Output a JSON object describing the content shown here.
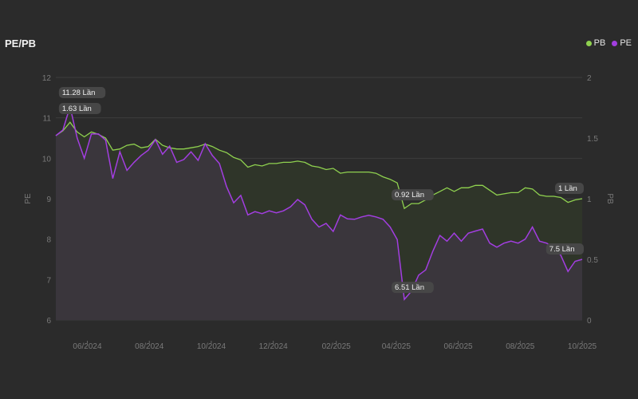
{
  "chart_data": {
    "type": "line",
    "title": "PE/PB",
    "left_axis": {
      "label": "PE",
      "ylim": [
        6,
        12
      ],
      "ticks": [
        "6",
        "7",
        "8",
        "9",
        "10",
        "11",
        "12"
      ]
    },
    "right_axis": {
      "label": "PB",
      "ylim": [
        0,
        2
      ],
      "ticks": [
        "0",
        "0.5",
        "1",
        "1.5",
        "2"
      ]
    },
    "x_ticks": [
      {
        "date": "2024-06-01",
        "label": "06/2024"
      },
      {
        "date": "2024-08-01",
        "label": "08/2024"
      },
      {
        "date": "2024-10-01",
        "label": "10/2024"
      },
      {
        "date": "2024-12-01",
        "label": "12/2024"
      },
      {
        "date": "2025-02-01",
        "label": "02/2025"
      },
      {
        "date": "2025-04-01",
        "label": "04/2025"
      },
      {
        "date": "2025-06-01",
        "label": "06/2025"
      },
      {
        "date": "2025-08-01",
        "label": "08/2025"
      },
      {
        "date": "2025-10-01",
        "label": "10/2025"
      }
    ],
    "grid": true,
    "legend_position": "top-right",
    "x": [
      "2024-05-01",
      "2024-05-08",
      "2024-05-15",
      "2024-05-22",
      "2024-05-29",
      "2024-06-05",
      "2024-06-12",
      "2024-06-19",
      "2024-06-26",
      "2024-07-03",
      "2024-07-10",
      "2024-07-17",
      "2024-07-24",
      "2024-07-31",
      "2024-08-07",
      "2024-08-14",
      "2024-08-21",
      "2024-08-28",
      "2024-09-04",
      "2024-09-11",
      "2024-09-18",
      "2024-09-25",
      "2024-10-02",
      "2024-10-09",
      "2024-10-16",
      "2024-10-23",
      "2024-10-30",
      "2024-11-06",
      "2024-11-13",
      "2024-11-20",
      "2024-11-27",
      "2024-12-04",
      "2024-12-11",
      "2024-12-18",
      "2024-12-25",
      "2025-01-01",
      "2025-01-08",
      "2025-01-15",
      "2025-01-22",
      "2025-01-29",
      "2025-02-05",
      "2025-02-12",
      "2025-02-19",
      "2025-02-26",
      "2025-03-05",
      "2025-03-12",
      "2025-03-19",
      "2025-03-26",
      "2025-04-02",
      "2025-04-09",
      "2025-04-16",
      "2025-04-23",
      "2025-04-30",
      "2025-05-07",
      "2025-05-14",
      "2025-05-21",
      "2025-05-28",
      "2025-06-04",
      "2025-06-11",
      "2025-06-18",
      "2025-06-25",
      "2025-07-02",
      "2025-07-09",
      "2025-07-16",
      "2025-07-23",
      "2025-07-30",
      "2025-08-06",
      "2025-08-13",
      "2025-08-20",
      "2025-08-27",
      "2025-09-03",
      "2025-09-10",
      "2025-09-17",
      "2025-09-24",
      "2025-10-01"
    ],
    "series": [
      {
        "name": "PB",
        "axis": "right",
        "color": "#8fd14f",
        "values": [
          1.52,
          1.56,
          1.63,
          1.55,
          1.51,
          1.55,
          1.53,
          1.5,
          1.4,
          1.41,
          1.44,
          1.45,
          1.42,
          1.43,
          1.49,
          1.44,
          1.42,
          1.41,
          1.41,
          1.42,
          1.43,
          1.45,
          1.43,
          1.4,
          1.38,
          1.34,
          1.32,
          1.26,
          1.28,
          1.27,
          1.29,
          1.29,
          1.3,
          1.3,
          1.31,
          1.3,
          1.27,
          1.26,
          1.24,
          1.25,
          1.21,
          1.22,
          1.22,
          1.22,
          1.22,
          1.21,
          1.18,
          1.16,
          1.13,
          0.92,
          0.96,
          0.96,
          0.99,
          1.03,
          1.06,
          1.09,
          1.06,
          1.09,
          1.09,
          1.11,
          1.11,
          1.07,
          1.03,
          1.04,
          1.05,
          1.05,
          1.09,
          1.08,
          1.03,
          1.02,
          1.02,
          1.01,
          0.97,
          0.99,
          1.0
        ]
      },
      {
        "name": "PE",
        "axis": "left",
        "color": "#a23ee0",
        "values": [
          10.56,
          10.7,
          11.28,
          10.5,
          10.0,
          10.6,
          10.6,
          10.45,
          9.5,
          10.16,
          9.7,
          9.9,
          10.07,
          10.2,
          10.46,
          10.1,
          10.3,
          9.9,
          9.97,
          10.16,
          9.95,
          10.36,
          10.07,
          9.87,
          9.3,
          8.9,
          9.08,
          8.6,
          8.68,
          8.63,
          8.7,
          8.65,
          8.7,
          8.8,
          8.98,
          8.85,
          8.49,
          8.3,
          8.39,
          8.19,
          8.6,
          8.5,
          8.49,
          8.55,
          8.59,
          8.55,
          8.49,
          8.3,
          7.99,
          6.51,
          6.71,
          7.11,
          7.24,
          7.7,
          8.09,
          7.95,
          8.15,
          7.95,
          8.15,
          8.2,
          8.25,
          7.9,
          7.8,
          7.9,
          7.95,
          7.9,
          8.0,
          8.3,
          7.95,
          7.9,
          7.8,
          7.6,
          7.2,
          7.45,
          7.5
        ]
      }
    ],
    "annotations": [
      {
        "series": "PE",
        "date": "2024-05-15",
        "text": "11.28 Lần"
      },
      {
        "series": "PB",
        "date": "2024-05-15",
        "text": "1.63 Lần"
      },
      {
        "series": "PB",
        "date": "2025-04-09",
        "text": "0.92 Lần"
      },
      {
        "series": "PE",
        "date": "2025-04-09",
        "text": "6.51 Lần"
      },
      {
        "series": "PB",
        "date": "2025-10-01",
        "text": "1 Lần"
      },
      {
        "series": "PE",
        "date": "2025-10-01",
        "text": "7.5 Lần"
      }
    ]
  }
}
